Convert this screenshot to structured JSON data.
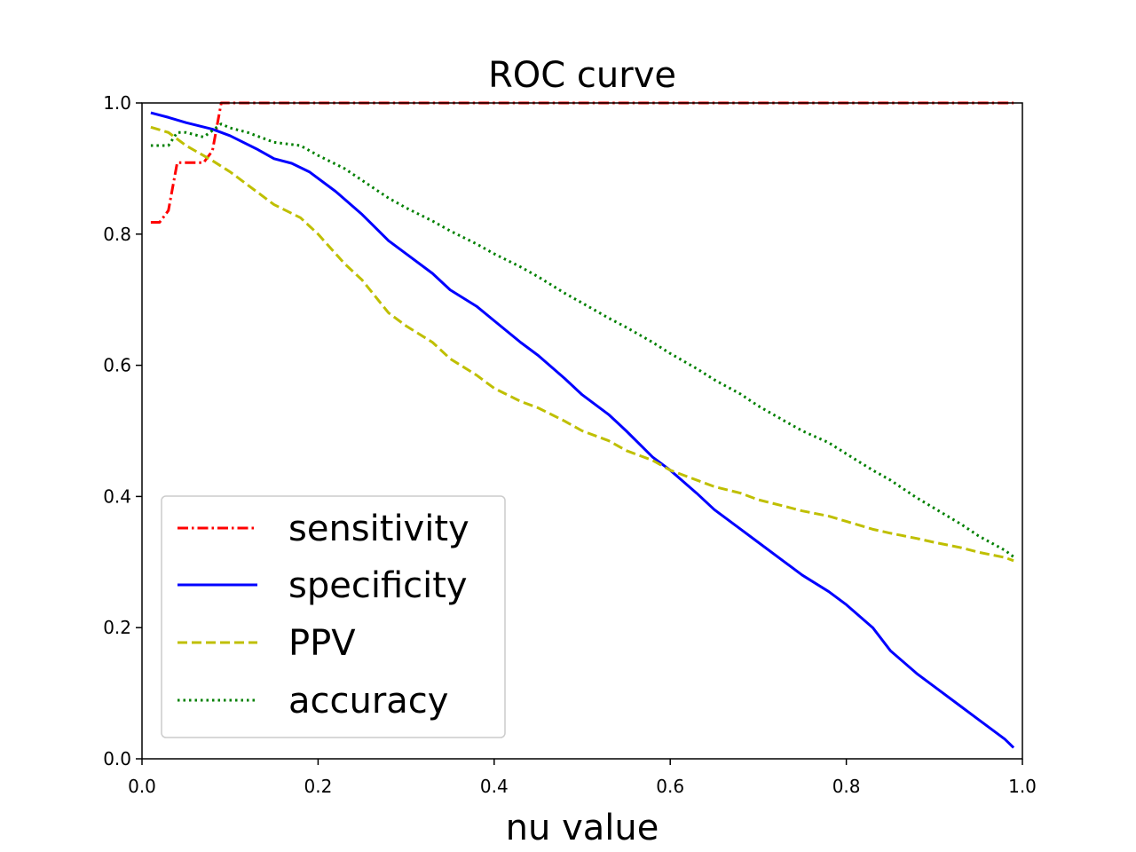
{
  "chart_data": {
    "type": "line",
    "title": "ROC curve",
    "xlabel": "nu value",
    "ylabel": "",
    "xlim": [
      0.0,
      1.0
    ],
    "ylim": [
      0.0,
      1.0
    ],
    "xticks": [
      "0.0",
      "0.2",
      "0.4",
      "0.6",
      "0.8",
      "1.0"
    ],
    "yticks": [
      "0.0",
      "0.2",
      "0.4",
      "0.6",
      "0.8",
      "1.0"
    ],
    "grid": false,
    "legend_position": "lower-left",
    "series": [
      {
        "name": "sensitivity",
        "color": "#ff0000",
        "style": "dashdot",
        "x": [
          0.01,
          0.02,
          0.03,
          0.04,
          0.05,
          0.06,
          0.07,
          0.08,
          0.09,
          0.1,
          0.2,
          0.4,
          0.6,
          0.8,
          0.99
        ],
        "y": [
          0.818,
          0.818,
          0.836,
          0.909,
          0.909,
          0.909,
          0.909,
          0.927,
          1.0,
          1.0,
          1.0,
          1.0,
          1.0,
          1.0,
          1.0
        ]
      },
      {
        "name": "specificity",
        "color": "#0000ff",
        "style": "solid",
        "x": [
          0.01,
          0.03,
          0.05,
          0.08,
          0.1,
          0.13,
          0.15,
          0.17,
          0.19,
          0.22,
          0.25,
          0.28,
          0.3,
          0.33,
          0.35,
          0.38,
          0.4,
          0.43,
          0.45,
          0.48,
          0.5,
          0.53,
          0.55,
          0.58,
          0.6,
          0.63,
          0.65,
          0.68,
          0.7,
          0.73,
          0.75,
          0.78,
          0.8,
          0.83,
          0.85,
          0.88,
          0.9,
          0.93,
          0.95,
          0.98,
          0.99
        ],
        "y": [
          0.985,
          0.978,
          0.97,
          0.96,
          0.95,
          0.93,
          0.915,
          0.908,
          0.895,
          0.865,
          0.83,
          0.79,
          0.77,
          0.74,
          0.715,
          0.69,
          0.668,
          0.635,
          0.615,
          0.58,
          0.555,
          0.525,
          0.5,
          0.46,
          0.44,
          0.405,
          0.38,
          0.35,
          0.33,
          0.3,
          0.28,
          0.255,
          0.235,
          0.2,
          0.165,
          0.13,
          0.11,
          0.08,
          0.06,
          0.03,
          0.017
        ]
      },
      {
        "name": "PPV",
        "color": "#bfbf00",
        "style": "dashed",
        "x": [
          0.01,
          0.03,
          0.05,
          0.08,
          0.1,
          0.12,
          0.15,
          0.18,
          0.2,
          0.23,
          0.25,
          0.28,
          0.3,
          0.33,
          0.35,
          0.38,
          0.4,
          0.43,
          0.45,
          0.48,
          0.5,
          0.53,
          0.55,
          0.58,
          0.6,
          0.63,
          0.65,
          0.68,
          0.7,
          0.73,
          0.75,
          0.78,
          0.8,
          0.83,
          0.85,
          0.88,
          0.9,
          0.93,
          0.95,
          0.98,
          0.99
        ],
        "y": [
          0.963,
          0.955,
          0.935,
          0.912,
          0.895,
          0.875,
          0.845,
          0.825,
          0.8,
          0.755,
          0.73,
          0.68,
          0.66,
          0.635,
          0.61,
          0.585,
          0.565,
          0.545,
          0.535,
          0.515,
          0.5,
          0.485,
          0.47,
          0.455,
          0.44,
          0.425,
          0.415,
          0.405,
          0.395,
          0.385,
          0.378,
          0.37,
          0.362,
          0.35,
          0.344,
          0.336,
          0.33,
          0.322,
          0.315,
          0.307,
          0.302
        ]
      },
      {
        "name": "accuracy",
        "color": "#008000",
        "style": "dotted",
        "x": [
          0.01,
          0.02,
          0.03,
          0.04,
          0.05,
          0.07,
          0.09,
          0.1,
          0.12,
          0.15,
          0.18,
          0.2,
          0.23,
          0.25,
          0.28,
          0.3,
          0.33,
          0.35,
          0.38,
          0.4,
          0.43,
          0.45,
          0.48,
          0.5,
          0.53,
          0.55,
          0.58,
          0.6,
          0.63,
          0.65,
          0.68,
          0.7,
          0.73,
          0.75,
          0.78,
          0.8,
          0.83,
          0.85,
          0.88,
          0.9,
          0.93,
          0.95,
          0.98,
          0.99
        ],
        "y": [
          0.935,
          0.935,
          0.935,
          0.955,
          0.955,
          0.948,
          0.968,
          0.962,
          0.955,
          0.94,
          0.935,
          0.92,
          0.9,
          0.882,
          0.855,
          0.84,
          0.82,
          0.805,
          0.785,
          0.77,
          0.75,
          0.735,
          0.71,
          0.695,
          0.672,
          0.658,
          0.635,
          0.618,
          0.595,
          0.578,
          0.556,
          0.538,
          0.515,
          0.5,
          0.482,
          0.465,
          0.44,
          0.425,
          0.398,
          0.382,
          0.358,
          0.34,
          0.318,
          0.308
        ]
      }
    ]
  }
}
